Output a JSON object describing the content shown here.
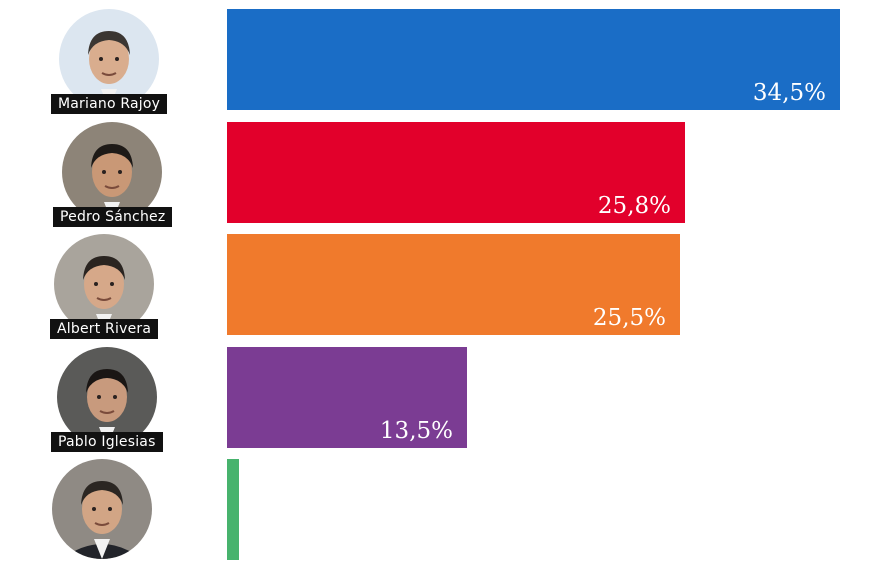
{
  "chart_data": {
    "type": "bar",
    "orientation": "horizontal",
    "categories": [
      "Mariano Rajoy",
      "Pedro Sánchez",
      "Albert Rivera",
      "Pablo Iglesias",
      ""
    ],
    "values": [
      34.5,
      25.8,
      25.5,
      13.5,
      0.7
    ],
    "value_labels": [
      "34,5%",
      "25,8%",
      "25,5%",
      "13,5%",
      ""
    ],
    "colors": [
      "#1a6dc6",
      "#e2002b",
      "#f07a2c",
      "#7b3c93",
      "#47b36d"
    ],
    "title": "",
    "xlabel": "",
    "ylabel": "",
    "legend": "none",
    "grid": false
  }
}
